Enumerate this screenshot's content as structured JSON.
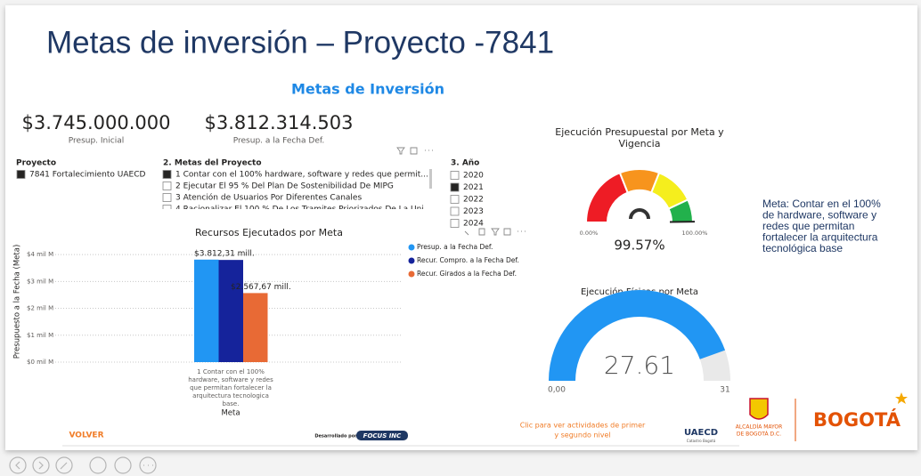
{
  "slide_title": "Metas de inversión – Proyecto -7841",
  "report_title": "Metas de Inversión",
  "kpis": [
    {
      "value": "$3.745.000.000",
      "label": "Presup. Inicial"
    },
    {
      "value": "$3.812.314.503",
      "label": "Presup. a la Fecha Def."
    }
  ],
  "slicers": {
    "project": {
      "title": "Proyecto",
      "items": [
        "7841 Fortalecimiento UAECD"
      ]
    },
    "goals": {
      "title": "2. Metas del Proyecto",
      "items": [
        "1 Contar con el 100% hardware, software y redes que permit...",
        "2 Ejecutar El 95 % Del Plan De Sostenibilidad De MIPG",
        "3 Atención de Usuarios Por Diferentes Canales",
        "4 Racionalizar El 100 % De Los Tramites Priorizados De La Uni"
      ]
    },
    "year": {
      "title": "3. Año",
      "items": [
        "2020",
        "2021",
        "2022",
        "2023",
        "2024"
      ],
      "selected": "2021"
    }
  },
  "bar_chart": {
    "title": "Recursos Ejecutados por Meta",
    "y_label": "Presupuesto a la Fecha (Meta)",
    "x_label": "Meta",
    "category_lines": [
      "1 Contar con el 100%",
      "hardware, software y redes",
      "que permitan fortalecer la",
      "arquitectura tecnologica",
      "base."
    ],
    "ylim": [
      0,
      4.5
    ],
    "yticks": [
      {
        "value": 0,
        "label": "$0 mil M"
      },
      {
        "value": 1,
        "label": "$1 mil M"
      },
      {
        "value": 2,
        "label": "$2 mil M"
      },
      {
        "value": 3,
        "label": "$3 mil M"
      },
      {
        "value": 4,
        "label": "$4 mil M"
      }
    ],
    "series": [
      {
        "name": "Presup. a la Fecha Def.",
        "color": "#2196f3",
        "values": [
          3.81231
        ],
        "value_labels": [
          "$3.812,31 mill."
        ]
      },
      {
        "name": "Recur. Compro. a la Fecha Def.",
        "color": "#15239b",
        "values": [
          3.8
        ]
      },
      {
        "name": "Recur. Girados a la Fecha Def.",
        "color": "#e86a35",
        "values": [
          2.56767
        ],
        "value_labels": [
          "$2.567,67 mill."
        ]
      }
    ]
  },
  "budget_gauge": {
    "title_lines": [
      "Ejecución Presupuestal por Meta y",
      "Vigencia"
    ],
    "value": 99.57,
    "value_label": "99.57%",
    "min": {
      "value": 0,
      "label": "0.00%"
    },
    "max": {
      "value": 100,
      "label": "100.00%"
    }
  },
  "physical_gauge": {
    "title": "Ejecución Físicas por Meta",
    "value": 27.61,
    "min": {
      "value": 0,
      "label": "0,00"
    },
    "max": 31,
    "color": "#2196f3"
  },
  "note_lines": [
    "Meta: Contar en el 100%",
    "de hardware, software y",
    "redes que permitan",
    "fortalecer la arquitectura",
    "tecnológica base"
  ],
  "footer": {
    "back": "VOLVER",
    "developed_by": "Desarrollado por",
    "developer": "FOCUS INC",
    "activities_lines": [
      "Clic para ver actividades de primer",
      "y segundo nivel"
    ],
    "uaecd": "UAECD",
    "uaecd_sub": "Catastro Bogotá",
    "alcaldia_lines": [
      "ALCALDÍA MAYOR",
      "DE BOGOTÁ D.C."
    ],
    "bogota": "BOGOTÁ"
  }
}
